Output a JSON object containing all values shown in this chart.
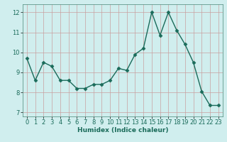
{
  "x": [
    0,
    1,
    2,
    3,
    4,
    5,
    6,
    7,
    8,
    9,
    10,
    11,
    12,
    13,
    14,
    15,
    16,
    17,
    18,
    19,
    20,
    21,
    22,
    23
  ],
  "y": [
    9.7,
    8.6,
    9.5,
    9.3,
    8.6,
    8.6,
    8.2,
    8.2,
    8.4,
    8.4,
    8.6,
    9.2,
    9.1,
    9.9,
    10.2,
    12.0,
    10.85,
    12.0,
    11.1,
    10.4,
    9.5,
    8.05,
    7.35,
    7.35
  ],
  "line_color": "#1a6b5a",
  "marker_color": "#1a6b5a",
  "bg_color": "#d0eeee",
  "grid_color": "#c8a0a0",
  "xlabel": "Humidex (Indice chaleur)",
  "ylim": [
    6.8,
    12.4
  ],
  "xlim": [
    -0.5,
    23.5
  ],
  "yticks": [
    7,
    8,
    9,
    10,
    11,
    12
  ],
  "xticks": [
    0,
    1,
    2,
    3,
    4,
    5,
    6,
    7,
    8,
    9,
    10,
    11,
    12,
    13,
    14,
    15,
    16,
    17,
    18,
    19,
    20,
    21,
    22,
    23
  ],
  "xlabel_fontsize": 6.5,
  "tick_fontsize": 6,
  "line_width": 1.0,
  "marker_size": 2.5,
  "spine_color": "#4a8878"
}
